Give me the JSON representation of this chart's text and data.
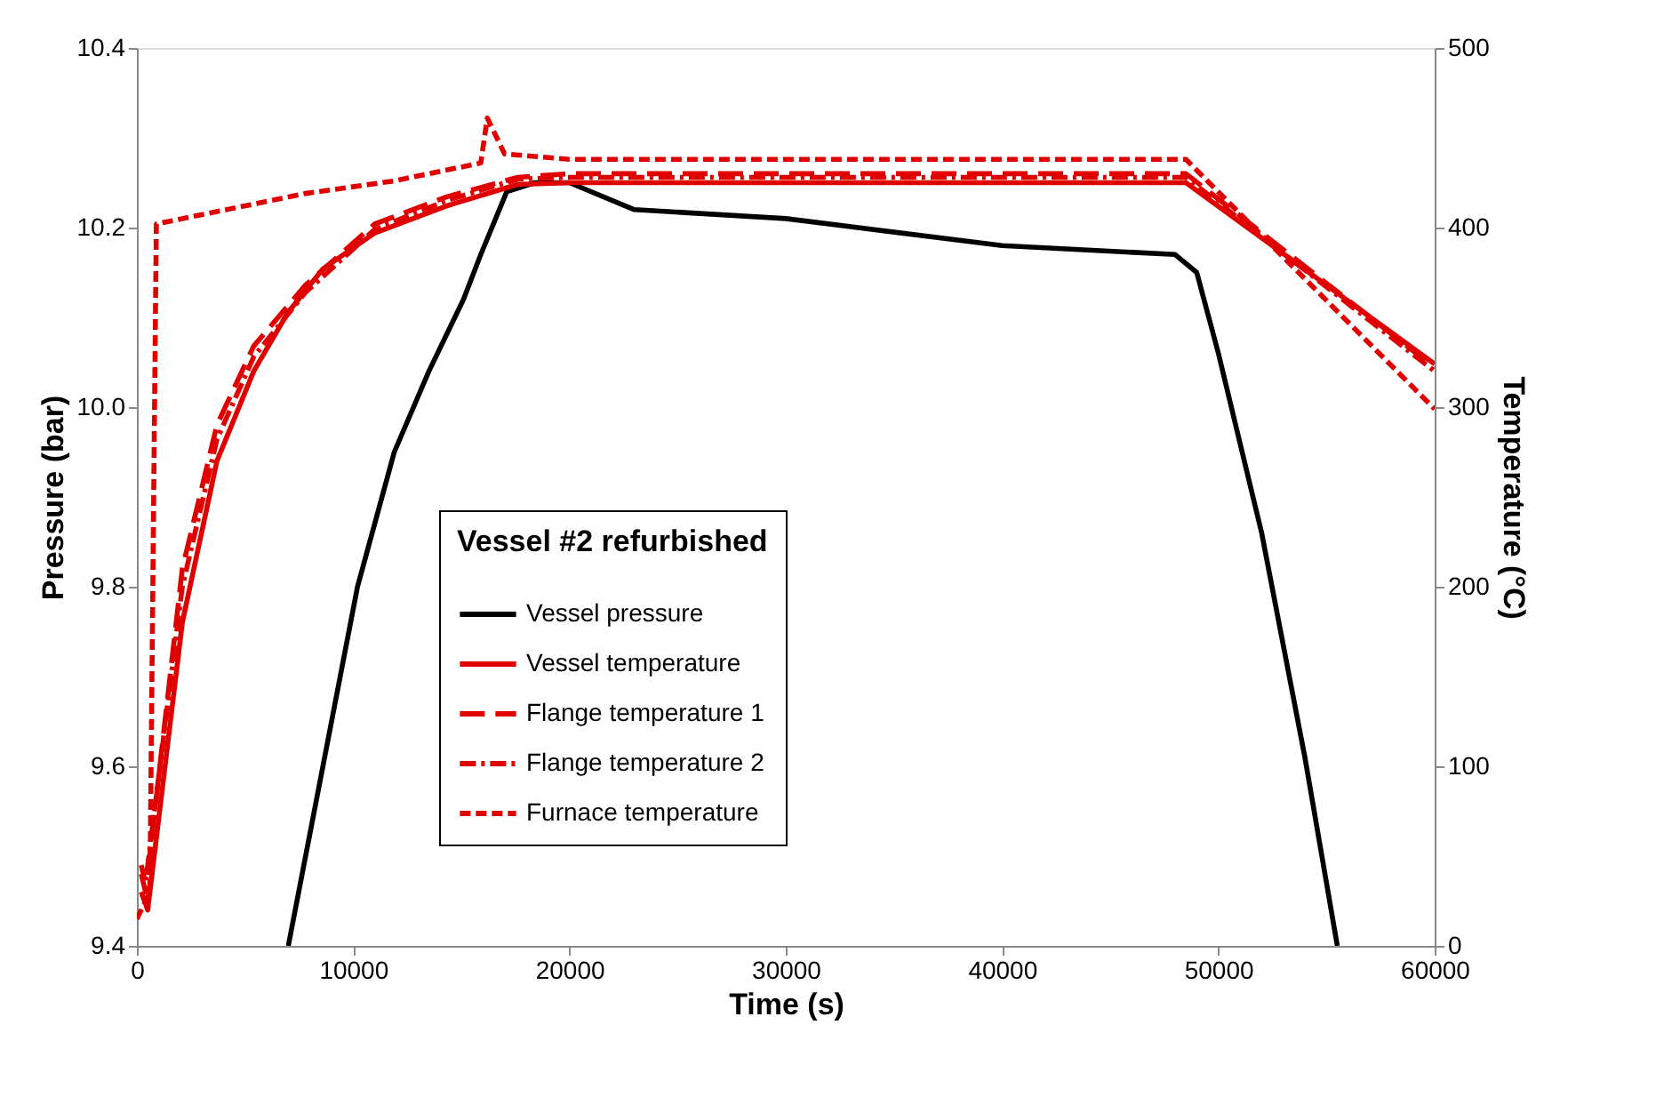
{
  "chart_data": {
    "type": "line",
    "xlabel": "Time (s)",
    "ylabel": "Pressure (bar)",
    "y2label": "Temperature (°C)",
    "legend_title": "Vessel #2 refurbished",
    "legend": "bottom",
    "grid": false,
    "marker": "none",
    "xlim": [
      0,
      60000
    ],
    "xticks": [
      0,
      10000,
      20000,
      30000,
      40000,
      50000,
      60000
    ],
    "ylim": [
      9.4,
      10.4
    ],
    "yticks": [
      9.4,
      9.6,
      9.8,
      {
        "value": 10.0,
        "label": "10.0"
      },
      10.2,
      10.4
    ],
    "y2lim": [
      0,
      500
    ],
    "y2ticks": [
      0,
      100,
      200,
      300,
      400,
      500
    ],
    "series": [
      {
        "name": "Vessel pressure",
        "color": "#000000",
        "line_style": "solid",
        "x": [
          7000,
          8200,
          10200,
          11900,
          13500,
          15100,
          15900,
          17100,
          18400,
          20000,
          23000,
          30000,
          40000,
          48000,
          49000,
          50000,
          52000,
          54000,
          55500
        ],
        "values": [
          9.4,
          9.55,
          9.8,
          9.95,
          10.04,
          10.12,
          10.17,
          10.24,
          10.25,
          10.25,
          10.22,
          10.21,
          10.18,
          10.17,
          10.15,
          10.06,
          9.86,
          9.61,
          9.4
        ]
      },
      {
        "name": "Vessel temperature",
        "color": "#e00000",
        "axis": "y2",
        "line_style": "solid",
        "x": [
          200,
          500,
          2100,
          3700,
          5400,
          7000,
          8600,
          11000,
          14300,
          17600,
          20000,
          30000,
          40000,
          48500,
          60000
        ],
        "values": [
          30,
          20,
          180,
          270,
          320,
          353,
          377,
          397,
          412,
          424,
          425,
          425,
          425,
          425,
          324
        ]
      },
      {
        "name": "Flange temperature 1",
        "color": "#e00000",
        "axis": "y2",
        "line_style": "dashed",
        "x": [
          200,
          400,
          2100,
          3700,
          5400,
          7800,
          11000,
          14300,
          17600,
          20000,
          30000,
          40000,
          48500,
          60000
        ],
        "values": [
          40,
          30,
          210,
          290,
          334,
          368,
          402,
          417,
          428,
          430,
          430,
          430,
          430,
          322
        ]
      },
      {
        "name": "Flange temperature 2",
        "color": "#e00000",
        "axis": "y2",
        "line_style": "dashed",
        "x": [
          200,
          400,
          2100,
          3700,
          5400,
          7800,
          11000,
          14300,
          17600,
          20000,
          30000,
          40000,
          48500,
          60000
        ],
        "values": [
          45,
          35,
          200,
          282,
          328,
          364,
          399,
          415,
          427,
          428,
          428,
          428,
          428,
          320
        ]
      },
      {
        "name": "Furnace temperature",
        "color": "#e00000",
        "axis": "y2",
        "line_style": "dashed",
        "x": [
          0,
          600,
          900,
          7800,
          11900,
          15900,
          16200,
          17000,
          20000,
          30000,
          40000,
          48500,
          60000
        ],
        "values": [
          15,
          30,
          402,
          419,
          426,
          436,
          461,
          441,
          438,
          438,
          438,
          438,
          299
        ]
      }
    ]
  }
}
